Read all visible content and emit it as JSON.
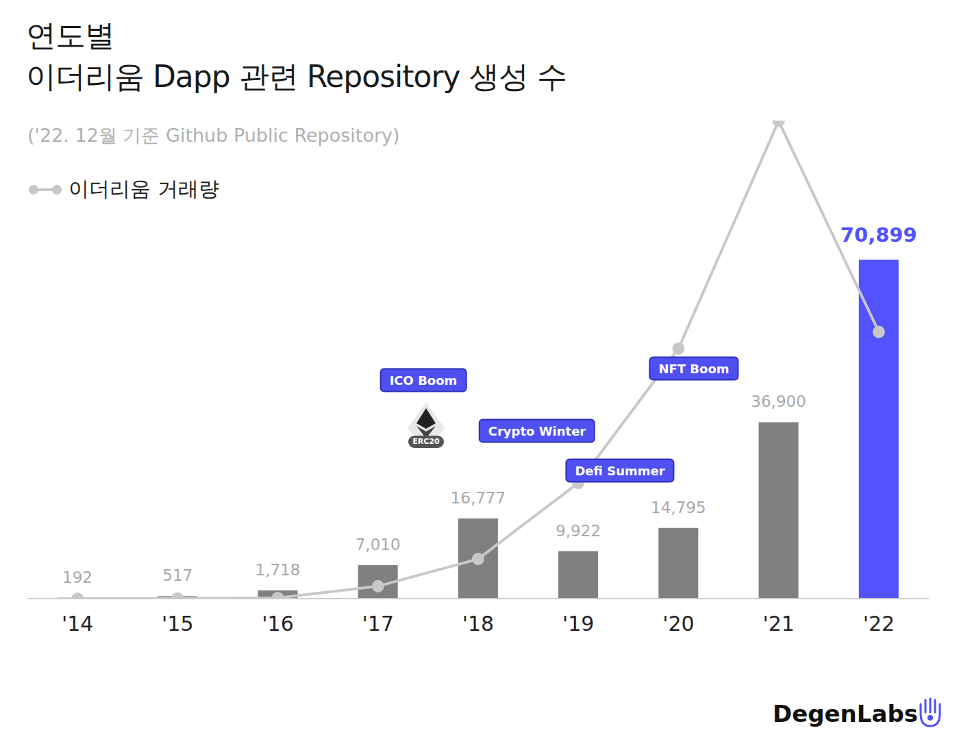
{
  "chart_data": {
    "type": "bar",
    "title": "연도별\n이더리움 Dapp 관련 Repository 생성 수",
    "subtitle": "('22. 12월 기준 Github Public Repository)",
    "categories": [
      "'14",
      "'15",
      "'16",
      "'17",
      "'18",
      "'19",
      "'20",
      "'21",
      "'22"
    ],
    "series": [
      {
        "type": "bar",
        "values": [
          192,
          517,
          1718,
          7010,
          16777,
          9922,
          14795,
          36900,
          70899
        ],
        "value_labels": [
          "192",
          "517",
          "1,718",
          "7,010",
          "16,777",
          "9,922",
          "14,795",
          "36,900",
          "70,899"
        ],
        "colors": [
          "#808080",
          "#808080",
          "#808080",
          "#808080",
          "#808080",
          "#808080",
          "#808080",
          "#808080",
          "#5252ff"
        ]
      },
      {
        "type": "line",
        "name": "이더리움 거래량",
        "color": "#c8c8c8",
        "marker": "circle",
        "values": [
          0,
          50,
          150,
          2600,
          8300,
          24200,
          52300,
          99900,
          55800
        ]
      }
    ],
    "ylim": [
      0,
      100000
    ],
    "tick_labels": "x",
    "grid": false,
    "legend": "top-left",
    "data_labels": true,
    "annotations": [
      "ICO Boom",
      "ERC20",
      "Crypto Winter",
      "Defi Summer",
      "NFT Boom"
    ],
    "source": "DegenLabs"
  }
}
